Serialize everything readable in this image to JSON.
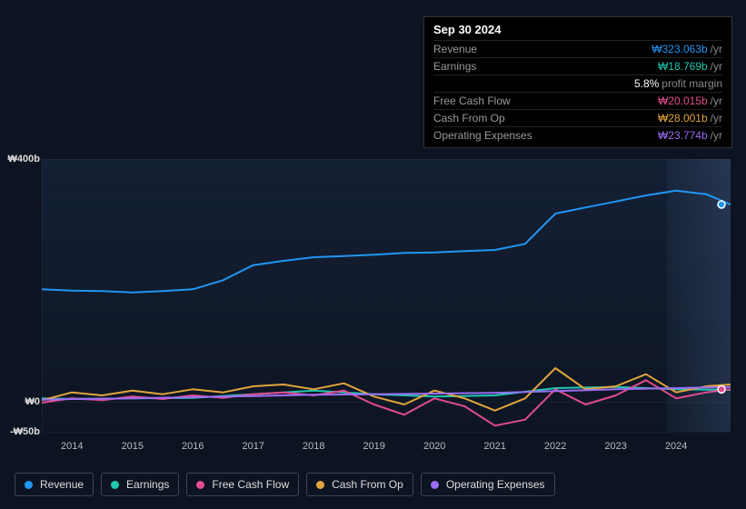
{
  "tooltip": {
    "date": "Sep 30 2024",
    "rows": [
      {
        "label": "Revenue",
        "value": "₩323.063b",
        "suffix": "/yr",
        "color": "#2196f3"
      },
      {
        "label": "Earnings",
        "value": "₩18.769b",
        "suffix": "/yr",
        "color": "#1fc7b0"
      },
      {
        "label": "",
        "value": "5.8%",
        "suffix": "profit margin",
        "color": "#ffffff"
      },
      {
        "label": "Free Cash Flow",
        "value": "₩20.015b",
        "suffix": "/yr",
        "color": "#e24b8e"
      },
      {
        "label": "Cash From Op",
        "value": "₩28.001b",
        "suffix": "/yr",
        "color": "#e2a53b"
      },
      {
        "label": "Operating Expenses",
        "value": "₩23.774b",
        "suffix": "/yr",
        "color": "#9b6ef3"
      }
    ]
  },
  "chart": {
    "type": "line",
    "background_color": "#0d1421",
    "plot_bg_gradient": [
      "rgba(30,50,80,0.4)",
      "rgba(15,25,45,0.2)"
    ],
    "highlight_band_color": "rgba(120,160,220,0.12)",
    "grid_color": "rgba(255,255,255,0.04)",
    "xlim": [
      2013.5,
      2024.9
    ],
    "ylim": [
      -50,
      400
    ],
    "yticks": [
      {
        "v": 400,
        "label": "₩400b"
      },
      {
        "v": 0,
        "label": "₩0"
      },
      {
        "v": -50,
        "label": "-₩50b"
      }
    ],
    "xticks": [
      2014,
      2015,
      2016,
      2017,
      2018,
      2019,
      2020,
      2021,
      2022,
      2023,
      2024
    ],
    "line_width": 2,
    "cursor_x": 2024.75,
    "series": [
      {
        "name": "Revenue",
        "color": "#2196f3",
        "xs": [
          2013.5,
          2014,
          2014.5,
          2015,
          2015.5,
          2016,
          2016.5,
          2017,
          2017.5,
          2018,
          2018.5,
          2019,
          2019.5,
          2020,
          2020.5,
          2021,
          2021.5,
          2022,
          2022.5,
          2023,
          2023.5,
          2024,
          2024.5,
          2024.9
        ],
        "ys": [
          185,
          183,
          182,
          180,
          182,
          185,
          200,
          225,
          232,
          238,
          240,
          242,
          245,
          246,
          248,
          250,
          260,
          310,
          320,
          330,
          340,
          348,
          342,
          325
        ]
      },
      {
        "name": "Earnings",
        "color": "#1fc7b0",
        "xs": [
          2013.5,
          2014,
          2015,
          2016,
          2017,
          2018,
          2019,
          2020,
          2021,
          2022,
          2023,
          2024,
          2024.9
        ],
        "ys": [
          5,
          4,
          5,
          6,
          12,
          18,
          12,
          8,
          10,
          22,
          24,
          20,
          19
        ]
      },
      {
        "name": "Free Cash Flow",
        "color": "#e24b8e",
        "xs": [
          2013.5,
          2014,
          2014.5,
          2015,
          2015.5,
          2016,
          2016.5,
          2017,
          2017.5,
          2018,
          2018.5,
          2019,
          2019.5,
          2020,
          2020.5,
          2021,
          2021.5,
          2022,
          2022.5,
          2023,
          2023.5,
          2024,
          2024.5,
          2024.9
        ],
        "ys": [
          -2,
          5,
          2,
          8,
          4,
          10,
          6,
          12,
          15,
          10,
          18,
          -5,
          -22,
          5,
          -8,
          -40,
          -30,
          20,
          -5,
          10,
          35,
          5,
          15,
          20
        ]
      },
      {
        "name": "Cash From Op",
        "color": "#e2a53b",
        "xs": [
          2013.5,
          2014,
          2014.5,
          2015,
          2015.5,
          2016,
          2016.5,
          2017,
          2017.5,
          2018,
          2018.5,
          2019,
          2019.5,
          2020,
          2020.5,
          2021,
          2021.5,
          2022,
          2022.5,
          2023,
          2023.5,
          2024,
          2024.5,
          2024.9
        ],
        "ys": [
          2,
          15,
          10,
          18,
          12,
          20,
          15,
          25,
          28,
          20,
          30,
          8,
          -5,
          18,
          5,
          -15,
          5,
          55,
          20,
          25,
          45,
          15,
          25,
          28
        ]
      },
      {
        "name": "Operating Expenses",
        "color": "#9b6ef3",
        "xs": [
          2013.5,
          2014,
          2015,
          2016,
          2017,
          2018,
          2019,
          2020,
          2021,
          2022,
          2023,
          2024,
          2024.9
        ],
        "ys": [
          3,
          4,
          5,
          7,
          9,
          11,
          12,
          13,
          14,
          17,
          20,
          22,
          24
        ]
      }
    ],
    "cursor_dots": [
      {
        "series": "Revenue",
        "y": 325,
        "color": "#2196f3"
      },
      {
        "series": "Free Cash Flow",
        "y": 20,
        "color": "#e24b8e"
      }
    ]
  },
  "legend": [
    {
      "label": "Revenue",
      "color": "#2196f3"
    },
    {
      "label": "Earnings",
      "color": "#1fc7b0"
    },
    {
      "label": "Free Cash Flow",
      "color": "#e24b8e"
    },
    {
      "label": "Cash From Op",
      "color": "#e2a53b"
    },
    {
      "label": "Operating Expenses",
      "color": "#9b6ef3"
    }
  ]
}
